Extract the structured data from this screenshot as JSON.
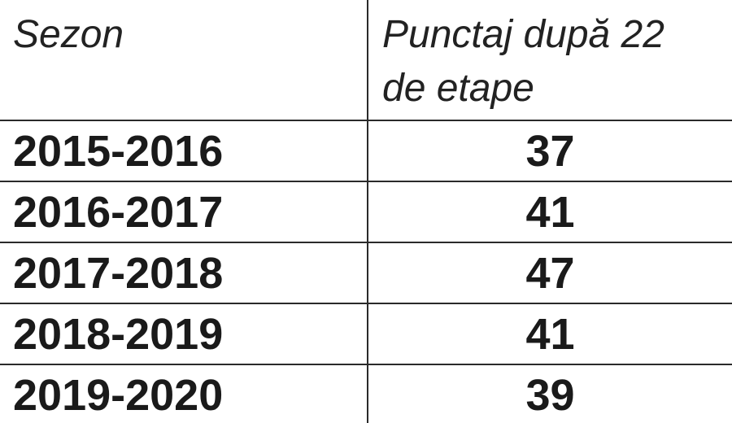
{
  "table": {
    "header": [
      "Sezon",
      "Punctaj după 22 de etape"
    ],
    "rows": [
      [
        "2015-2016",
        37
      ],
      [
        "2016-2017",
        41
      ],
      [
        "2017-2018",
        47
      ],
      [
        "2018-2019",
        41
      ],
      [
        "2019-2020",
        39
      ]
    ]
  }
}
